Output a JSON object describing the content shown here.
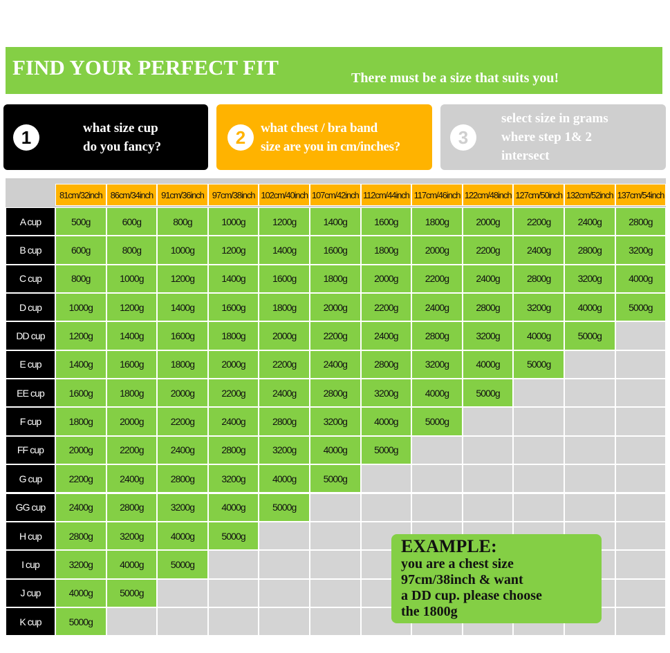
{
  "header": {
    "title": "FIND YOUR PERFECT FIT",
    "subtitle": "There must be a size that suits you!"
  },
  "steps": [
    {
      "number": "1",
      "lines": [
        "what size cup",
        "do you fancy?"
      ]
    },
    {
      "number": "2",
      "lines": [
        "what chest / bra band",
        "size are you in cm/inches?"
      ]
    },
    {
      "number": "3",
      "lines": [
        "select size in grams",
        "where step 1& 2",
        "intersect"
      ]
    }
  ],
  "table": {
    "columns": [
      "81cm/32inch",
      "86cm/34inch",
      "91cm/36inch",
      "97cm/38inch",
      "102cm/40inch",
      "107cm/42inch",
      "112cm/44inch",
      "117cm/46inch",
      "122cm/48inch",
      "127cm/50inch",
      "132cm/52inch",
      "137cm/54inch"
    ],
    "rows": [
      {
        "label": "A cup",
        "cells": [
          "500g",
          "600g",
          "800g",
          "1000g",
          "1200g",
          "1400g",
          "1600g",
          "1800g",
          "2000g",
          "2200g",
          "2400g",
          "2800g"
        ]
      },
      {
        "label": "B cup",
        "cells": [
          "600g",
          "800g",
          "1000g",
          "1200g",
          "1400g",
          "1600g",
          "1800g",
          "2000g",
          "2200g",
          "2400g",
          "2800g",
          "3200g"
        ]
      },
      {
        "label": "C cup",
        "cells": [
          "800g",
          "1000g",
          "1200g",
          "1400g",
          "1600g",
          "1800g",
          "2000g",
          "2200g",
          "2400g",
          "2800g",
          "3200g",
          "4000g"
        ]
      },
      {
        "label": "D cup",
        "cells": [
          "1000g",
          "1200g",
          "1400g",
          "1600g",
          "1800g",
          "2000g",
          "2200g",
          "2400g",
          "2800g",
          "3200g",
          "4000g",
          "5000g"
        ]
      },
      {
        "label": "DD cup",
        "cells": [
          "1200g",
          "1400g",
          "1600g",
          "1800g",
          "2000g",
          "2200g",
          "2400g",
          "2800g",
          "3200g",
          "4000g",
          "5000g"
        ]
      },
      {
        "label": "E cup",
        "cells": [
          "1400g",
          "1600g",
          "1800g",
          "2000g",
          "2200g",
          "2400g",
          "2800g",
          "3200g",
          "4000g",
          "5000g"
        ]
      },
      {
        "label": "EE cup",
        "cells": [
          "1600g",
          "1800g",
          "2000g",
          "2200g",
          "2400g",
          "2800g",
          "3200g",
          "4000g",
          "5000g"
        ]
      },
      {
        "label": "F cup",
        "cells": [
          "1800g",
          "2000g",
          "2200g",
          "2400g",
          "2800g",
          "3200g",
          "4000g",
          "5000g"
        ]
      },
      {
        "label": "FF cup",
        "cells": [
          "2000g",
          "2200g",
          "2400g",
          "2800g",
          "3200g",
          "4000g",
          "5000g"
        ]
      },
      {
        "label": "G cup",
        "cells": [
          "2200g",
          "2400g",
          "2800g",
          "3200g",
          "4000g",
          "5000g"
        ]
      },
      {
        "label": "GG cup",
        "cells": [
          "2400g",
          "2800g",
          "3200g",
          "4000g",
          "5000g"
        ]
      },
      {
        "label": "H cup",
        "cells": [
          "2800g",
          "3200g",
          "4000g",
          "5000g"
        ]
      },
      {
        "label": "I cup",
        "cells": [
          "3200g",
          "4000g",
          "5000g"
        ]
      },
      {
        "label": "J cup",
        "cells": [
          "4000g",
          "5000g"
        ]
      },
      {
        "label": "K cup",
        "cells": [
          "5000g"
        ]
      }
    ]
  },
  "example": {
    "title": "EXAMPLE:",
    "lines": [
      "you are a chest size",
      "97cm/38inch & want",
      "a DD cup. please choose",
      "the 1800g"
    ]
  }
}
